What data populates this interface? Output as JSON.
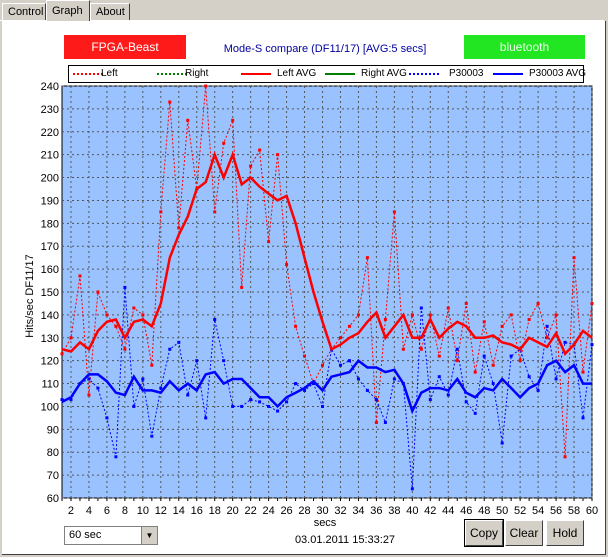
{
  "tabs": [
    {
      "label": "Control",
      "active": false
    },
    {
      "label": "Graph",
      "active": true
    },
    {
      "label": "About",
      "active": false
    }
  ],
  "badges": {
    "left": {
      "label": "FPGA-Beast",
      "color": "#ff1a1a"
    },
    "right": {
      "label": "bluetooth",
      "color": "#22e622"
    }
  },
  "chart_title": "Mode-S compare (DF11/17) [AVG:5 secs]",
  "legend": [
    {
      "label": "Left",
      "color": "#ff0000",
      "style": "dotted"
    },
    {
      "label": "Right",
      "color": "#008000",
      "style": "dotted"
    },
    {
      "label": "Left AVG",
      "color": "#ff0000",
      "style": "solid"
    },
    {
      "label": "Right AVG",
      "color": "#008000",
      "style": "solid"
    },
    {
      "label": "P30003",
      "color": "#0000ff",
      "style": "dotted"
    },
    {
      "label": "P30003 AVG",
      "color": "#0000ff",
      "style": "solid"
    }
  ],
  "ylabel": "Hits/sec DF11/17",
  "xlabel": "secs",
  "timestamp": "03.01.2011 15:33:27",
  "controls": {
    "window_select": "60 sec",
    "copy_label": "Copy",
    "clear_label": "Clear",
    "hold_label": "Hold"
  },
  "chart_data": {
    "type": "line",
    "xlabel": "secs",
    "ylabel": "Hits/sec DF11/17",
    "xlim": [
      1,
      60
    ],
    "ylim": [
      60,
      240
    ],
    "xticks": [
      2,
      4,
      6,
      8,
      10,
      12,
      14,
      16,
      18,
      20,
      22,
      24,
      26,
      28,
      30,
      32,
      34,
      36,
      38,
      40,
      42,
      44,
      46,
      48,
      50,
      52,
      54,
      56,
      58,
      60
    ],
    "yticks": [
      60,
      70,
      80,
      90,
      100,
      110,
      120,
      130,
      140,
      150,
      160,
      170,
      180,
      190,
      200,
      210,
      220,
      230,
      240
    ],
    "grid": true,
    "plot_background": "#99c2ff",
    "x": [
      1,
      2,
      3,
      4,
      5,
      6,
      7,
      8,
      9,
      10,
      11,
      12,
      13,
      14,
      15,
      16,
      17,
      18,
      19,
      20,
      21,
      22,
      23,
      24,
      25,
      26,
      27,
      28,
      29,
      30,
      31,
      32,
      33,
      34,
      35,
      36,
      37,
      38,
      39,
      40,
      41,
      42,
      43,
      44,
      45,
      46,
      47,
      48,
      49,
      50,
      51,
      52,
      53,
      54,
      55,
      56,
      57,
      58,
      59,
      60
    ],
    "series": [
      {
        "name": "Left",
        "color": "#ff0000",
        "style": "dotted",
        "values": [
          123,
          130,
          157,
          105,
          150,
          140,
          135,
          125,
          143,
          140,
          118,
          185,
          233,
          178,
          225,
          195,
          240,
          185,
          215,
          225,
          152,
          205,
          212,
          172,
          210,
          162,
          135,
          122,
          110,
          118,
          125,
          130,
          135,
          140,
          165,
          93,
          138,
          185,
          125,
          140,
          125,
          140,
          122,
          143,
          120,
          145,
          115,
          137,
          118,
          135,
          140,
          120,
          138,
          145,
          130,
          140,
          78,
          165,
          115,
          145
        ]
      },
      {
        "name": "P30003",
        "color": "#0000ff",
        "style": "dotted",
        "values": [
          103,
          103,
          110,
          112,
          108,
          95,
          78,
          152,
          100,
          112,
          87,
          108,
          125,
          128,
          105,
          120,
          95,
          138,
          120,
          100,
          100,
          103,
          102,
          100,
          98,
          102,
          110,
          107,
          110,
          100,
          125,
          118,
          120,
          112,
          107,
          103,
          93,
          112,
          110,
          64,
          143,
          103,
          113,
          105,
          125,
          102,
          97,
          122,
          110,
          84,
          122,
          125,
          113,
          107,
          135,
          112,
          128,
          127,
          95,
          127
        ]
      },
      {
        "name": "Left AVG",
        "color": "#ff0000",
        "style": "solid",
        "values": [
          125,
          124,
          128,
          125,
          133,
          137,
          138,
          130,
          137,
          138,
          135,
          145,
          165,
          175,
          183,
          195,
          198,
          210,
          200,
          210,
          197,
          200,
          196,
          193,
          190,
          192,
          180,
          165,
          150,
          137,
          125,
          127,
          130,
          132,
          137,
          141,
          130,
          135,
          140,
          130,
          130,
          138,
          130,
          134,
          137,
          135,
          130,
          130,
          131,
          128,
          127,
          125,
          130,
          128,
          126,
          132,
          123,
          127,
          133,
          130
        ]
      },
      {
        "name": "P30003 AVG",
        "color": "#0000ff",
        "style": "solid",
        "values": [
          102,
          104,
          110,
          114,
          114,
          111,
          106,
          105,
          113,
          107,
          107,
          106,
          111,
          107,
          110,
          107,
          114,
          115,
          110,
          112,
          112,
          108,
          104,
          104,
          100,
          104,
          106,
          108,
          111,
          107,
          113,
          114,
          115,
          120,
          117,
          117,
          115,
          116,
          110,
          98,
          106,
          108,
          108,
          107,
          112,
          106,
          104,
          108,
          107,
          112,
          108,
          104,
          108,
          110,
          118,
          120,
          115,
          118,
          110,
          110
        ]
      }
    ]
  }
}
